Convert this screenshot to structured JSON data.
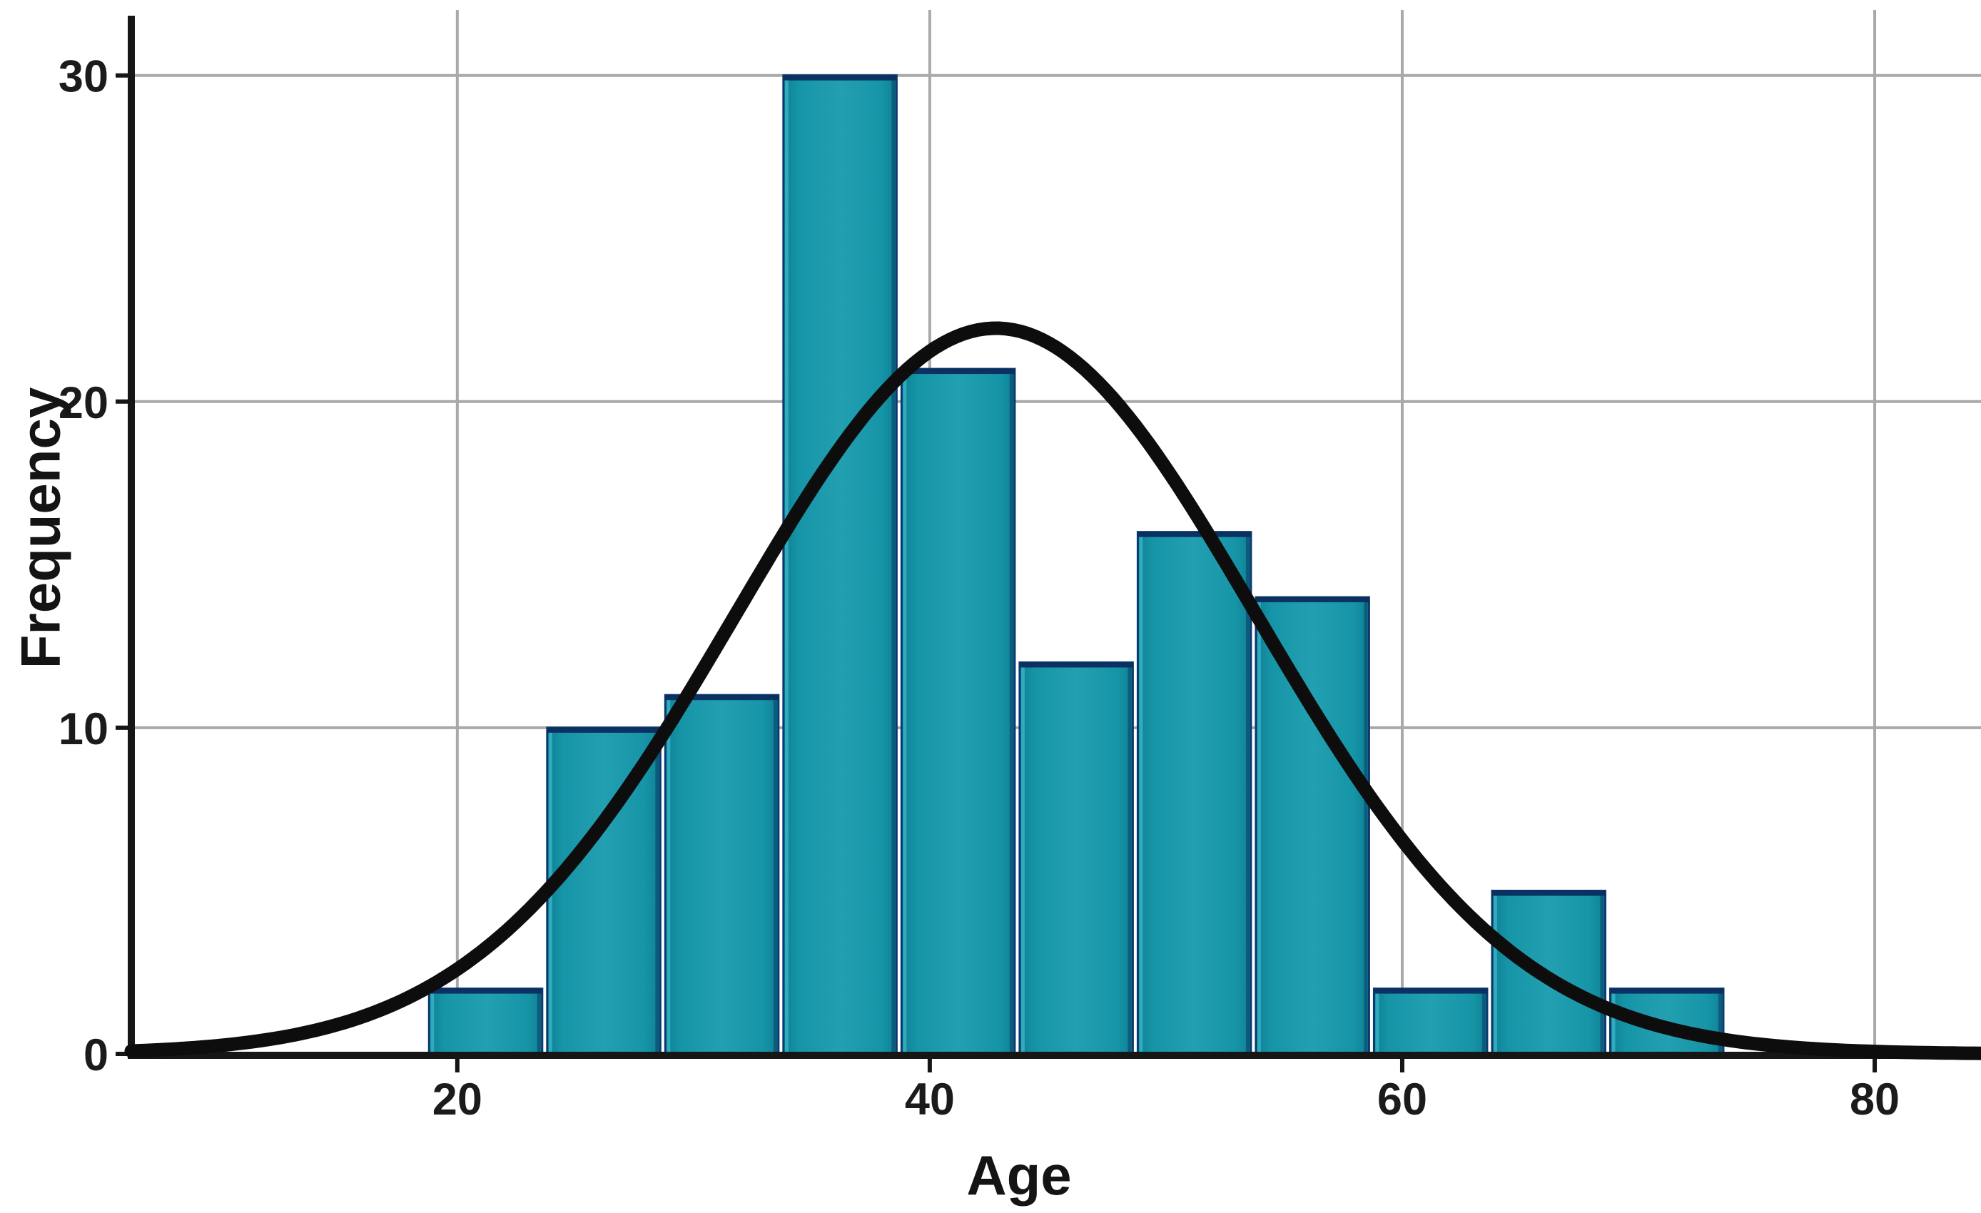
{
  "chart_data": {
    "type": "bar",
    "subtype": "histogram-with-normal-curve",
    "title": "",
    "xlabel": "Age",
    "ylabel": "Frequency",
    "x_ticks": [
      20,
      40,
      60,
      80
    ],
    "y_ticks": [
      0,
      10,
      20,
      30
    ],
    "xlim": [
      6.2,
      84.5
    ],
    "ylim": [
      0,
      31.7
    ],
    "grid": true,
    "bins": {
      "start": 18.7,
      "width": 5
    },
    "categories": [
      "18.7-23.7",
      "23.7-28.7",
      "28.7-33.7",
      "33.7-38.7",
      "38.7-43.7",
      "43.7-48.7",
      "48.7-53.7",
      "53.7-58.7",
      "58.7-63.7",
      "63.7-68.7",
      "68.7-73.7"
    ],
    "values": [
      2,
      10,
      11,
      30,
      21,
      12,
      16,
      14,
      2,
      5,
      2
    ],
    "normal_curve": {
      "mean": 42.8,
      "sd": 11.0,
      "peak": 22.25
    },
    "colors": {
      "bar_fill": "#1795a8",
      "bar_fill_light": "#22a0b1",
      "bar_fill_dark": "#0e8094",
      "bar_top_edge": "#0b2c5e",
      "bar_outline": "#0a3a6e",
      "bar_left_highlight": "#3ab8ca",
      "bar_right_shade": "#0b3a68",
      "curve": "#0d0d0d",
      "gridline": "#a9a9a9",
      "axis": "#161616",
      "label": "#1b1b1b",
      "background": "#ffffff"
    }
  }
}
